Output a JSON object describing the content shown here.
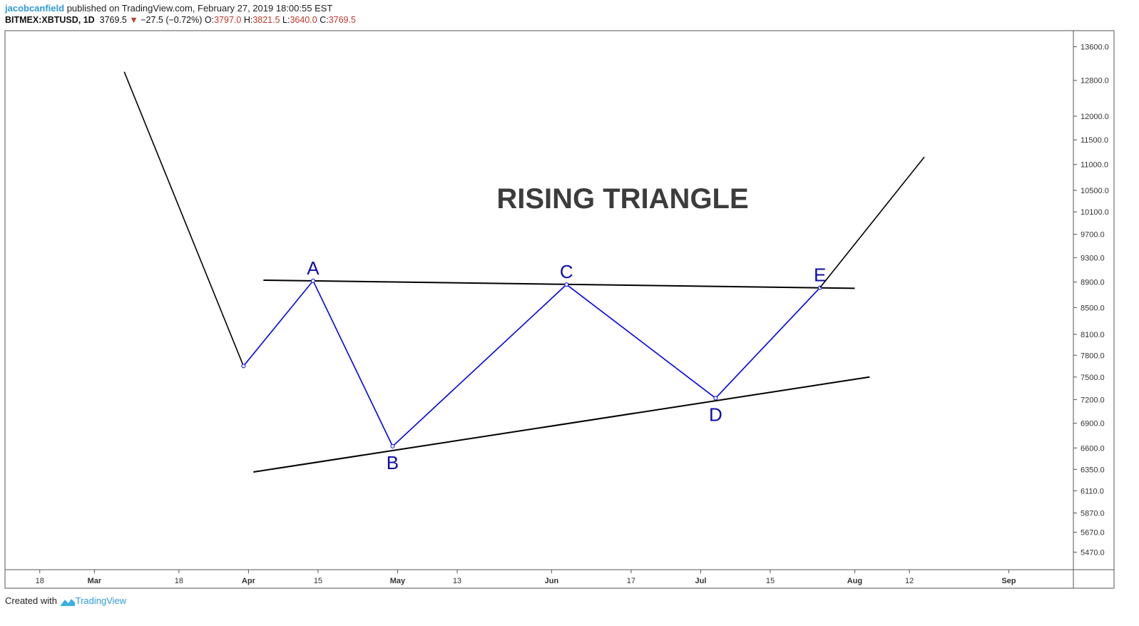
{
  "header": {
    "user": "jacobcanfield",
    "published_text": " published on TradingView.com, February 27, 2019 18:00:55 EST",
    "symbol": "BITMEX:XBTUSD, 1D",
    "last": "3769.5",
    "change": "−27.5 (−0.72%)",
    "open_label": "O:",
    "open": "3797.0",
    "high_label": "H:",
    "high": "3821.5",
    "low_label": "L:",
    "low": "3640.0",
    "close_label": "C:",
    "close": "3769.5",
    "down_color": "#c0392b"
  },
  "footer": {
    "created_with": "Created with",
    "brand": "TradingView"
  },
  "chart_data": {
    "type": "line",
    "title": "RISING TRIANGLE",
    "y_scale": "log",
    "ylim": [
      5300,
      14000
    ],
    "grid": false,
    "y_ticks": [
      5470,
      5670,
      5870,
      6110,
      6350,
      6600,
      6900,
      7200,
      7500,
      7800,
      8100,
      8500,
      8900,
      9300,
      9700,
      10100,
      10500,
      11000,
      11500,
      12000,
      12800,
      13600
    ],
    "y_tick_labels": [
      "5470.0",
      "5670.0",
      "5870.0",
      "6110.0",
      "6350.0",
      "6600.0",
      "6900.0",
      "7200.0",
      "7500.0",
      "7800.0",
      "8100.0",
      "8500.0",
      "8900.0",
      "9300.0",
      "9700.0",
      "10100.0",
      "10500.0",
      "11000.0",
      "11500.0",
      "12000.0",
      "12800.0",
      "13600.0"
    ],
    "x_range": [
      "2019-02-11",
      "2019-09-14"
    ],
    "x_ticks": [
      {
        "date": "2019-02-18",
        "label": "18"
      },
      {
        "date": "2019-03-01",
        "label": "Mar"
      },
      {
        "date": "2019-03-18",
        "label": "18"
      },
      {
        "date": "2019-04-01",
        "label": "Apr"
      },
      {
        "date": "2019-04-15",
        "label": "15"
      },
      {
        "date": "2019-05-01",
        "label": "May"
      },
      {
        "date": "2019-05-13",
        "label": "13"
      },
      {
        "date": "2019-06-01",
        "label": "Jun"
      },
      {
        "date": "2019-06-17",
        "label": "17"
      },
      {
        "date": "2019-07-01",
        "label": "Jul"
      },
      {
        "date": "2019-07-15",
        "label": "15"
      },
      {
        "date": "2019-08-01",
        "label": "Aug"
      },
      {
        "date": "2019-08-12",
        "label": "12"
      },
      {
        "date": "2019-09-01",
        "label": "Sep"
      }
    ],
    "series": [
      {
        "color": "#000000",
        "points": [
          {
            "x": "2019-03-07",
            "y": 13000
          },
          {
            "x": "2019-03-31",
            "y": 7650
          }
        ]
      },
      {
        "color": "#0000ee",
        "points": [
          {
            "x": "2019-03-31",
            "y": 7650,
            "label": ""
          },
          {
            "x": "2019-04-14",
            "y": 8920,
            "label": "A"
          },
          {
            "x": "2019-04-30",
            "y": 6620,
            "label": "B"
          },
          {
            "x": "2019-06-04",
            "y": 8860,
            "label": "C"
          },
          {
            "x": "2019-07-04",
            "y": 7220,
            "label": "D"
          },
          {
            "x": "2019-07-25",
            "y": 8810,
            "label": "E"
          }
        ]
      },
      {
        "color": "#000000",
        "points": [
          {
            "x": "2019-07-25",
            "y": 8810
          },
          {
            "x": "2019-08-15",
            "y": 11150
          }
        ]
      }
    ],
    "trendlines": [
      {
        "name": "resistance",
        "color": "#000000",
        "points": [
          {
            "x": "2019-04-04",
            "y": 8930
          },
          {
            "x": "2019-08-01",
            "y": 8800
          }
        ]
      },
      {
        "name": "support",
        "color": "#000000",
        "points": [
          {
            "x": "2019-04-02",
            "y": 6320
          },
          {
            "x": "2019-08-04",
            "y": 7500
          }
        ]
      }
    ]
  }
}
